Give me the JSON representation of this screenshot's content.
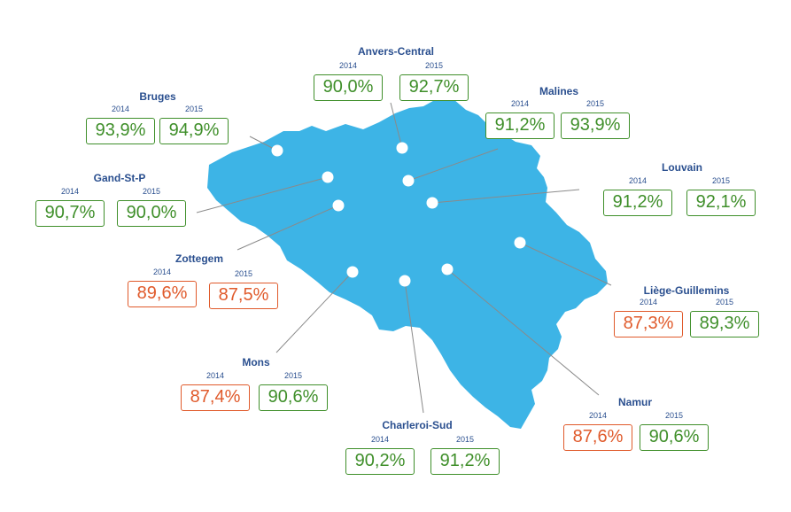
{
  "colors": {
    "map_fill": "#3db4e6",
    "good": "#3f8f2a",
    "bad": "#e05a2b",
    "label": "#2a4f8f",
    "leader": "#8a8a8a"
  },
  "stations": [
    {
      "id": "anvers-central",
      "name": "Anvers-Central",
      "y2014": "2014",
      "y2015": "2015",
      "v2014": "90,0%",
      "v2015": "92,7%",
      "s2014": "good",
      "s2015": "good"
    },
    {
      "id": "bruges",
      "name": "Bruges",
      "y2014": "2014",
      "y2015": "2015",
      "v2014": "93,9%",
      "v2015": "94,9%",
      "s2014": "good",
      "s2015": "good"
    },
    {
      "id": "malines",
      "name": "Malines",
      "y2014": "2014",
      "y2015": "2015",
      "v2014": "91,2%",
      "v2015": "93,9%",
      "s2014": "good",
      "s2015": "good"
    },
    {
      "id": "gand-st-p",
      "name": "Gand-St-P",
      "y2014": "2014",
      "y2015": "2015",
      "v2014": "90,7%",
      "v2015": "90,0%",
      "s2014": "good",
      "s2015": "good"
    },
    {
      "id": "louvain",
      "name": "Louvain",
      "y2014": "2014",
      "y2015": "2015",
      "v2014": "91,2%",
      "v2015": "92,1%",
      "s2014": "good",
      "s2015": "good"
    },
    {
      "id": "zottegem",
      "name": "Zottegem",
      "y2014": "2014",
      "y2015": "2015",
      "v2014": "89,6%",
      "v2015": "87,5%",
      "s2014": "bad",
      "s2015": "bad"
    },
    {
      "id": "liege-guillemins",
      "name": "Liège-Guillemins",
      "y2014": "2014",
      "y2015": "2015",
      "v2014": "87,3%",
      "v2015": "89,3%",
      "s2014": "bad",
      "s2015": "good"
    },
    {
      "id": "mons",
      "name": "Mons",
      "y2014": "2014",
      "y2015": "2015",
      "v2014": "87,4%",
      "v2015": "90,6%",
      "s2014": "bad",
      "s2015": "good"
    },
    {
      "id": "namur",
      "name": "Namur",
      "y2014": "2014",
      "y2015": "2015",
      "v2014": "87,6%",
      "v2015": "90,6%",
      "s2014": "bad",
      "s2015": "good"
    },
    {
      "id": "charleroi-sud",
      "name": "Charleroi-Sud",
      "y2014": "2014",
      "y2015": "2015",
      "v2014": "90,2%",
      "v2015": "91,2%",
      "s2014": "good",
      "s2015": "good"
    }
  ]
}
